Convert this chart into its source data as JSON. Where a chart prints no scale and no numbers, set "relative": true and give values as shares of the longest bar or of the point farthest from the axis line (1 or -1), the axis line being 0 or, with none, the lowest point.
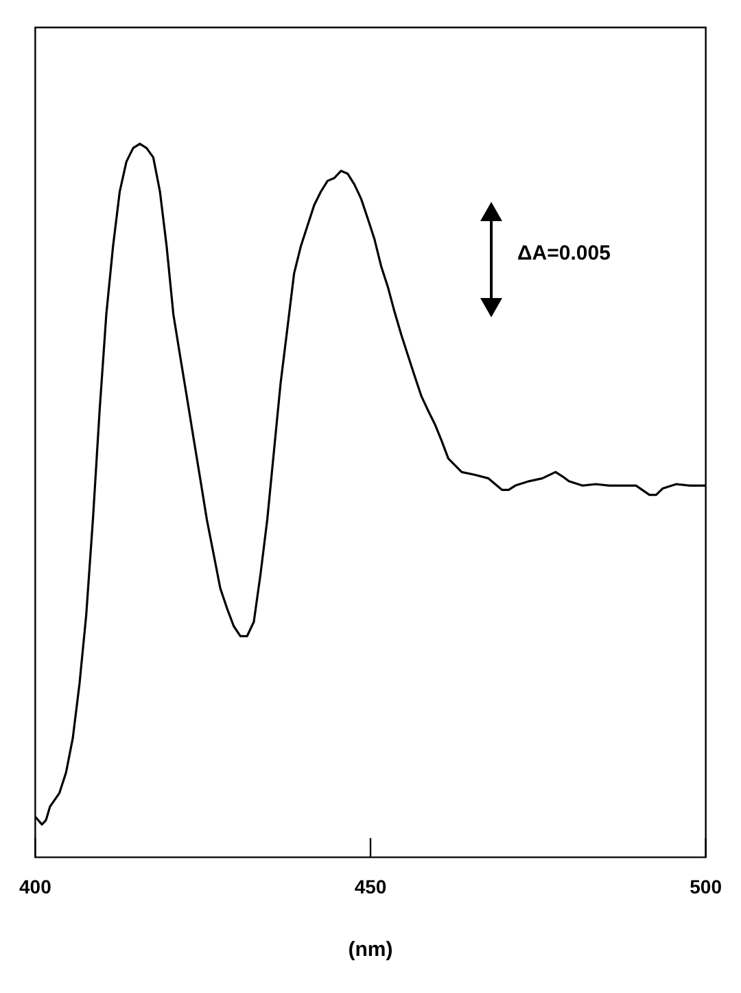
{
  "chart_data": {
    "type": "line",
    "relative": true,
    "xlabel": "(nm)",
    "xlim": [
      400,
      500
    ],
    "xticks": [
      400,
      450,
      500
    ],
    "grid": false,
    "legend": false,
    "marker": "none",
    "line_style": "solid",
    "annotations": [
      "ΔA=0.005"
    ],
    "series": [
      {
        "color": "#000000",
        "x": [
          400,
          401,
          401.6,
          402.2,
          403.6,
          404.6,
          405.6,
          406.6,
          407.6,
          408.6,
          409.6,
          410.6,
          411.6,
          412.6,
          413.6,
          414.6,
          415.6,
          416.6,
          417.6,
          418.6,
          419.6,
          420.6,
          421.6,
          422.6,
          423.6,
          424.6,
          425.6,
          426.6,
          427.6,
          428.6,
          429.6,
          430.6,
          431.6,
          432.6,
          433.6,
          434.6,
          435.6,
          436.6,
          437.6,
          438.6,
          439.6,
          440.6,
          441.6,
          442.6,
          443.6,
          444.6,
          445.6,
          446.6,
          447.6,
          448.6,
          449.6,
          450.6,
          451.6,
          452.6,
          453.6,
          454.6,
          455.6,
          456.6,
          457.6,
          458.6,
          459.6,
          460.6,
          461.6,
          463.6,
          465.6,
          467.6,
          469.6,
          470.6,
          471.6,
          473.6,
          475.6,
          477.6,
          478.6,
          479.6,
          481.6,
          483.6,
          485.6,
          487.6,
          489.6,
          491.6,
          492.6,
          493.6,
          495.6,
          497.6,
          500
        ],
        "values": [
          0.057,
          0.046,
          0.052,
          0.071,
          0.09,
          0.119,
          0.167,
          0.243,
          0.339,
          0.473,
          0.626,
          0.761,
          0.856,
          0.933,
          0.975,
          0.994,
          1,
          0.994,
          0.981,
          0.933,
          0.856,
          0.761,
          0.703,
          0.646,
          0.588,
          0.531,
          0.473,
          0.425,
          0.377,
          0.349,
          0.324,
          0.31,
          0.31,
          0.33,
          0.397,
          0.473,
          0.569,
          0.665,
          0.741,
          0.818,
          0.856,
          0.885,
          0.914,
          0.933,
          0.948,
          0.952,
          0.962,
          0.958,
          0.943,
          0.923,
          0.895,
          0.866,
          0.828,
          0.799,
          0.764,
          0.732,
          0.703,
          0.674,
          0.646,
          0.626,
          0.607,
          0.584,
          0.559,
          0.54,
          0.536,
          0.531,
          0.515,
          0.515,
          0.521,
          0.527,
          0.531,
          0.54,
          0.534,
          0.527,
          0.521,
          0.523,
          0.521,
          0.521,
          0.521,
          0.508,
          0.508,
          0.517,
          0.523,
          0.521,
          0.521
        ]
      }
    ]
  }
}
